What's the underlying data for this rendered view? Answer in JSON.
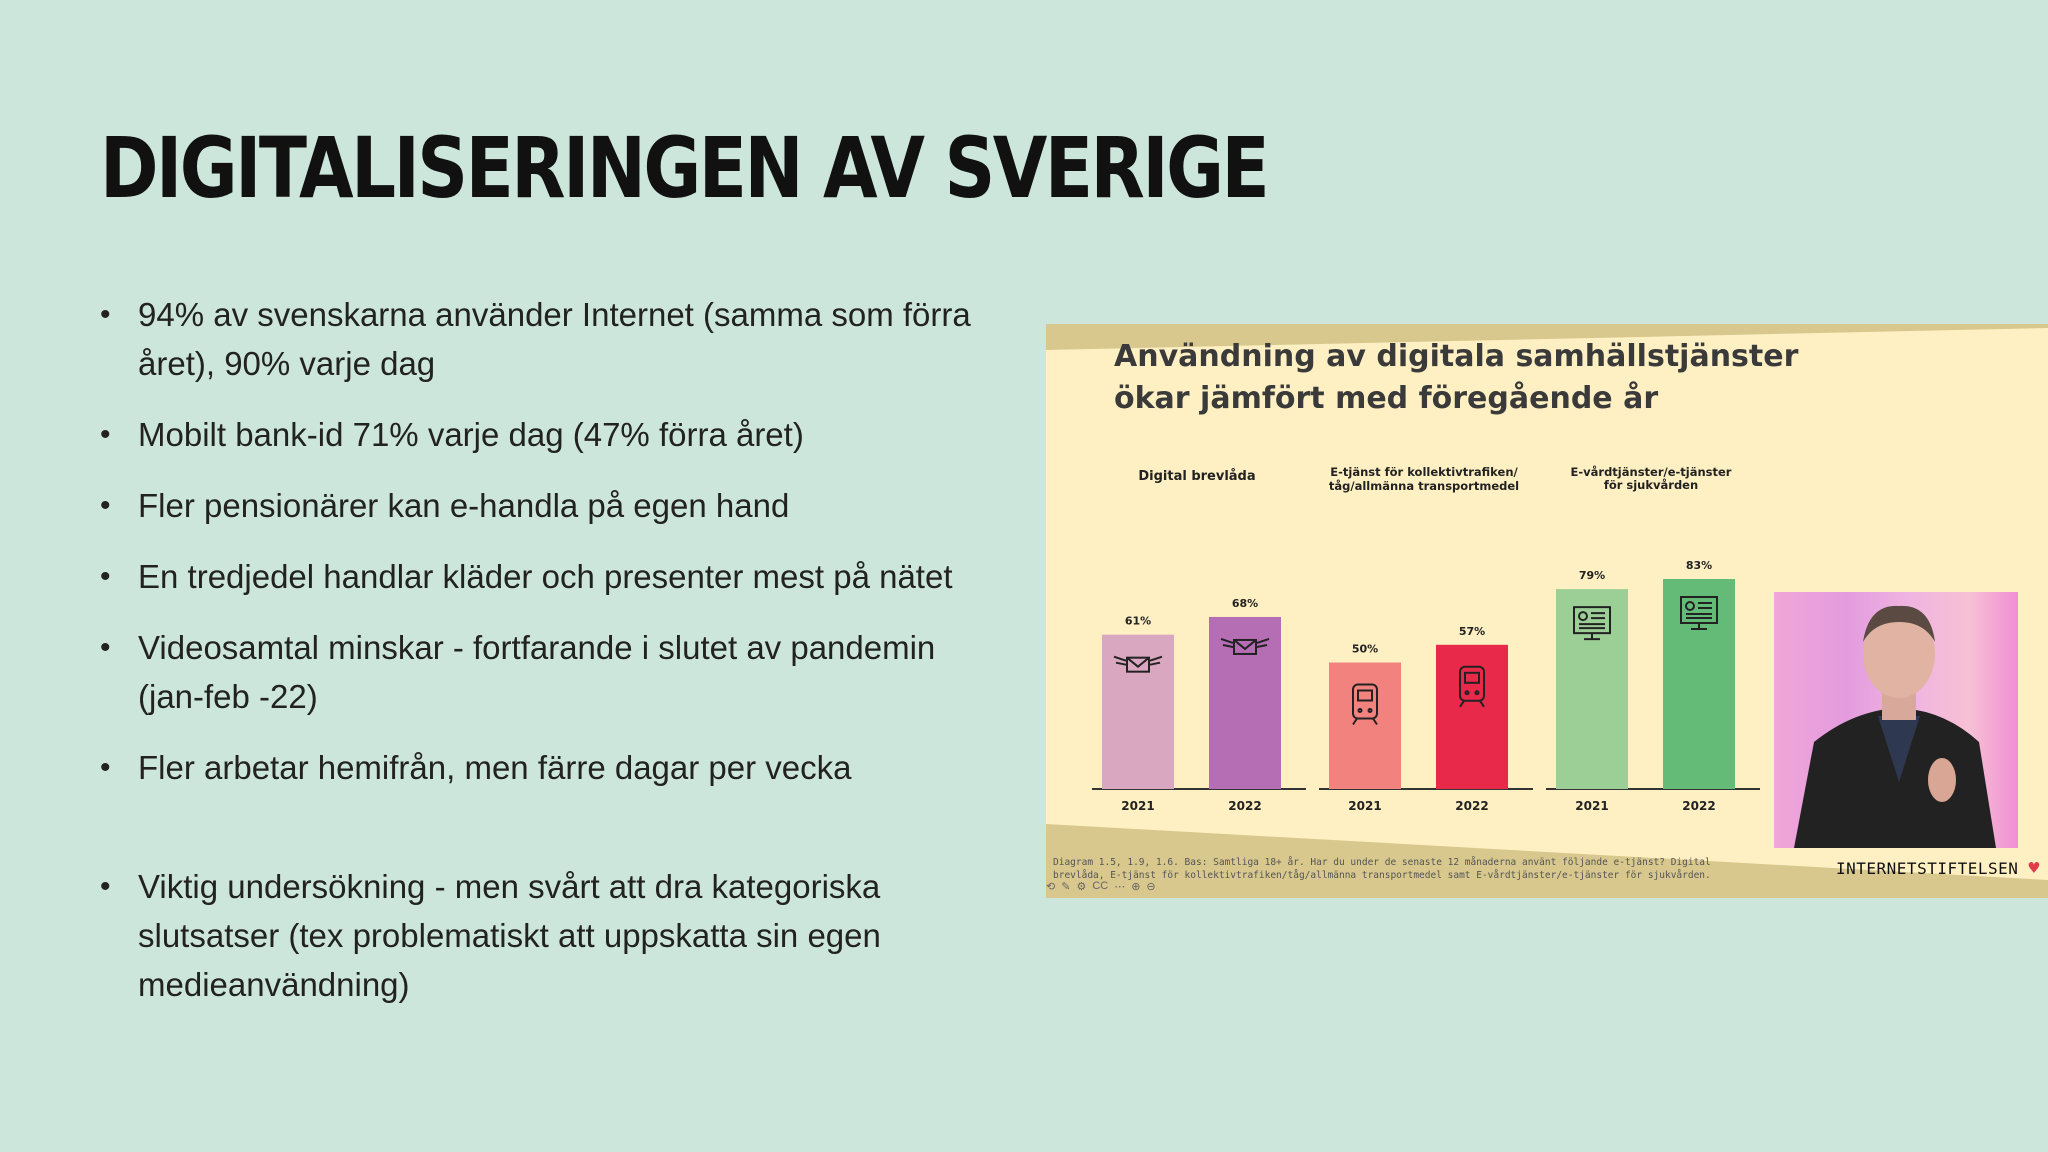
{
  "slide": {
    "title": "DIGITALISERINGEN AV SVERIGE",
    "bullets": [
      "94% av svenskarna använder Internet (samma som förra året), 90% varje dag",
      "Mobilt bank-id 71% varje dag (47% förra året)",
      "Fler pensionärer kan e-handla på egen hand",
      "En tredjedel handlar kläder och presenter mest på nätet",
      "Videosamtal minskar  - fortfarande i slutet av pandemin (jan-feb -22)",
      "Fler arbetar hemifrån, men färre dagar per vecka",
      "Viktig undersökning - men svårt att dra kategoriska slutsatser (tex problematiskt att uppskatta sin egen medieanvändning)"
    ]
  },
  "video": {
    "footnote": "Diagram 1.5, 1.9, 1.6. Bas: Samtliga 18+ år. Har du under de senaste 12 månaderna använt följande e-tjänst? Digital\nbrevlåda, E-tjänst för kollektivtrafiken/tåg/allmänna transportmedel samt E-vårdtjänster/e-tjänster för sjukvården.",
    "brand": "INTERNETSTIFTELSEN",
    "controls": [
      "⟲",
      "✎",
      "⚙",
      "CC",
      "⋯",
      "⊕",
      "⊖"
    ]
  },
  "chart_data": {
    "type": "bar",
    "title": "Användning av digitala samhällstjänster ökar jämfört med föregående år",
    "groups": [
      {
        "label": "Digital brevlåda",
        "icon": "envelope-with-wings-icon",
        "bars": [
          {
            "year": "2021",
            "value": 61,
            "label": "61%",
            "color": "#d9a7c0"
          },
          {
            "year": "2022",
            "value": 68,
            "label": "68%",
            "color": "#b56db3"
          }
        ]
      },
      {
        "label": "E-tjänst för kollektivtrafiken/ tåg/allmänna transportmedel",
        "icon": "train-icon",
        "bars": [
          {
            "year": "2021",
            "value": 50,
            "label": "50%",
            "color": "#f2827e"
          },
          {
            "year": "2022",
            "value": 57,
            "label": "57%",
            "color": "#e9294a"
          }
        ]
      },
      {
        "label": "E-vårdtjänster/e-tjänster för sjukvården",
        "icon": "medical-monitor-icon",
        "bars": [
          {
            "year": "2021",
            "value": 79,
            "label": "79%",
            "color": "#9bcf95"
          },
          {
            "year": "2022",
            "value": 83,
            "label": "83%",
            "color": "#64bb77"
          }
        ]
      }
    ]
  }
}
